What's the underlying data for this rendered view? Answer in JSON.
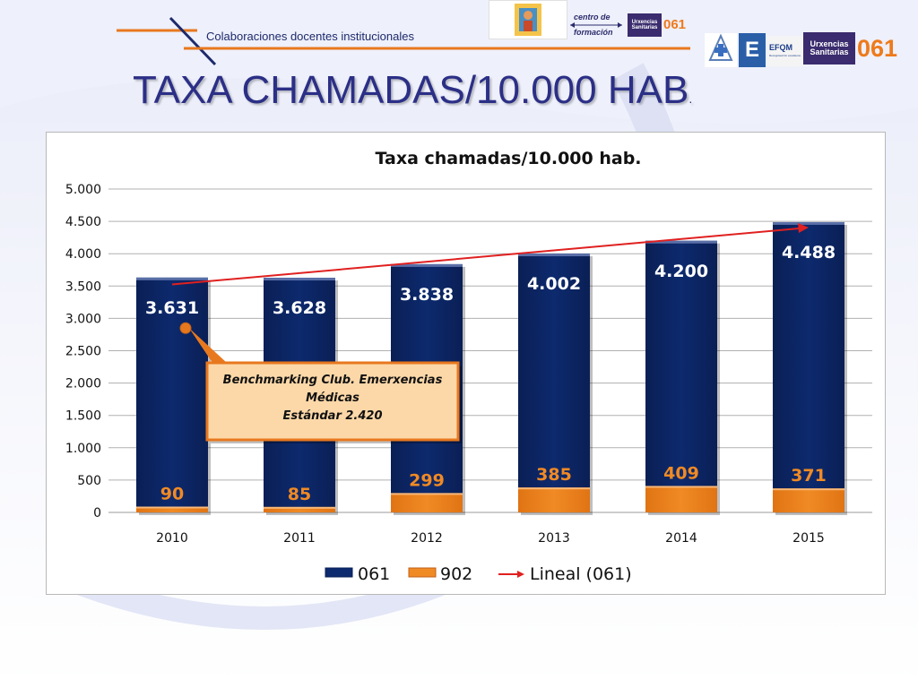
{
  "header": {
    "subtitle": "Colaboraciones docentes institucionales",
    "title": "TAXA CHAMADAS/10.000 HAB",
    "title_suffix": "."
  },
  "logos": {
    "centro_line1": "centro de",
    "centro_line2": "formación",
    "urx_line1": "Urxencias",
    "urx_line2": "Sanitarias",
    "brand_061": "061",
    "efqm": "EFQM",
    "efqm_sub": "Recognised for excellence",
    "e_letter": "E"
  },
  "colors": {
    "series_061": "#0d2a6e",
    "series_902": "#f08a24",
    "trend": "#e02020",
    "title_blue": "#2b2f86",
    "callout_fill": "#fcd8a8",
    "callout_border": "#e8781e"
  },
  "chart_data": {
    "type": "bar",
    "title": "Taxa chamadas/10.000 hab.",
    "categories": [
      "2010",
      "2011",
      "2012",
      "2013",
      "2014",
      "2015"
    ],
    "series": [
      {
        "name": "061",
        "values": [
          3631,
          3628,
          3838,
          4002,
          4200,
          4488
        ],
        "labels": [
          "3.631",
          "3.628",
          "3.838",
          "4.002",
          "4.200",
          "4.488"
        ]
      },
      {
        "name": "902",
        "values": [
          90,
          85,
          299,
          385,
          409,
          371
        ],
        "labels": [
          "90",
          "85",
          "299",
          "385",
          "409",
          "371"
        ]
      }
    ],
    "trendline": {
      "name": "Lineal (061)",
      "of_series": "061"
    },
    "ylim": [
      0,
      5000
    ],
    "yticks": [
      0,
      500,
      1000,
      1500,
      2000,
      2500,
      3000,
      3500,
      4000,
      4500,
      5000
    ],
    "ytick_labels": [
      "0",
      "500",
      "1.000",
      "1.500",
      "2.000",
      "2.500",
      "3.000",
      "3.500",
      "4.000",
      "4.500",
      "5.000"
    ],
    "grid": true,
    "legend_position": "bottom",
    "annotation": {
      "line1": "Benchmarking Club. Emerxencias",
      "line2": "Médicas",
      "line3": "Estándar 2.420",
      "points_to": {
        "category": "2010",
        "value": 2850
      }
    }
  }
}
